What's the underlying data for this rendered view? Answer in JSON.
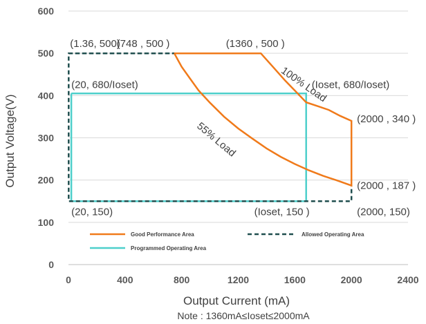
{
  "chart_data": {
    "type": "line",
    "xlabel": "Output Current (mA)",
    "ylabel": "Output Voltage(V)",
    "note": "Note :  1360mA≤Ioset≤2000mA",
    "xlim": [
      0,
      2400
    ],
    "ylim": [
      0,
      600
    ],
    "x_ticks": [
      0,
      400,
      800,
      1200,
      1600,
      2000,
      2400
    ],
    "y_ticks": [
      0,
      100,
      200,
      300,
      400,
      500,
      600
    ],
    "grid": "horizontal",
    "colors": {
      "good": "#F07A1A",
      "allowed": "#1F4E4E",
      "programmed": "#4DCFCB"
    },
    "series": [
      {
        "name": "Good Performance Area",
        "style": "solid",
        "points": [
          [
            748,
            500
          ],
          [
            1360,
            500
          ],
          [
            1445,
            468
          ],
          [
            1530,
            436
          ],
          [
            1620,
            405
          ],
          [
            1680,
            384
          ],
          [
            1760,
            375
          ],
          [
            1840,
            366
          ],
          [
            1920,
            352
          ],
          [
            2000,
            340
          ],
          [
            2000,
            187
          ],
          [
            1900,
            199
          ],
          [
            1800,
            210
          ],
          [
            1700,
            223
          ],
          [
            1600,
            238
          ],
          [
            1500,
            255
          ],
          [
            1400,
            275
          ],
          [
            1300,
            298
          ],
          [
            1200,
            322
          ],
          [
            1100,
            350
          ],
          [
            1000,
            383
          ],
          [
            920,
            412
          ],
          [
            860,
            440
          ],
          [
            800,
            468
          ],
          [
            748,
            500
          ]
        ]
      },
      {
        "name": "Allowed Operating Area",
        "style": "dashed",
        "points": [
          [
            1.36,
            500
          ],
          [
            748,
            500
          ],
          [
            1.36,
            500
          ],
          [
            1.36,
            150
          ],
          [
            2000,
            150
          ],
          [
            2000,
            187
          ]
        ]
      },
      {
        "name": "Programmed Operating Area",
        "style": "solid",
        "points": [
          [
            20,
            405
          ],
          [
            1680,
            405
          ],
          [
            1680,
            150
          ],
          [
            20,
            150
          ],
          [
            20,
            405
          ]
        ]
      }
    ],
    "annotations": [
      {
        "text": "(1.36, 500)",
        "x": 1.36,
        "y": 500,
        "anchor": "start",
        "dx": 2,
        "dy": -9
      },
      {
        "text": "(748 , 500 )",
        "x": 748,
        "y": 500,
        "anchor": "middle",
        "dx": -45,
        "dy": -9
      },
      {
        "text": "(1360 , 500 )",
        "x": 1360,
        "y": 500,
        "anchor": "middle",
        "dx": -8,
        "dy": -9
      },
      {
        "text": "(20, 680/Ioset)",
        "x": 20,
        "y": 405,
        "anchor": "start",
        "dx": 0,
        "dy": -8
      },
      {
        "text": "(Ioset, 680/Ioset)",
        "x": 1680,
        "y": 405,
        "anchor": "start",
        "dx": 8,
        "dy": -8
      },
      {
        "text": "(2000 , 340 )",
        "x": 2000,
        "y": 340,
        "anchor": "start",
        "dx": 8,
        "dy": 2
      },
      {
        "text": "(2000 , 187 )",
        "x": 2000,
        "y": 187,
        "anchor": "start",
        "dx": 8,
        "dy": 5
      },
      {
        "text": "(2000, 150)",
        "x": 2000,
        "y": 150,
        "anchor": "start",
        "dx": 8,
        "dy": 20
      },
      {
        "text": "(20, 150)",
        "x": 20,
        "y": 150,
        "anchor": "start",
        "dx": 0,
        "dy": 20
      },
      {
        "text": "(Ioset, 150 )",
        "x": 1680,
        "y": 150,
        "anchor": "end",
        "dx": 5,
        "dy": 20
      },
      {
        "text": "100% Load",
        "x": 1650,
        "y": 420,
        "anchor": "middle",
        "dx": 0,
        "dy": 0,
        "rotate": 35
      },
      {
        "text": "55% Load",
        "x": 1030,
        "y": 290,
        "anchor": "middle",
        "dx": 0,
        "dy": 0,
        "rotate": 40
      }
    ],
    "legend": [
      {
        "label": "Good Performance Area",
        "color": "#F07A1A",
        "style": "solid"
      },
      {
        "label": "Allowed Operating Area",
        "color": "#1F4E4E",
        "style": "dashed"
      },
      {
        "label": "Programmed Operating Area",
        "color": "#4DCFCB",
        "style": "solid"
      }
    ]
  }
}
